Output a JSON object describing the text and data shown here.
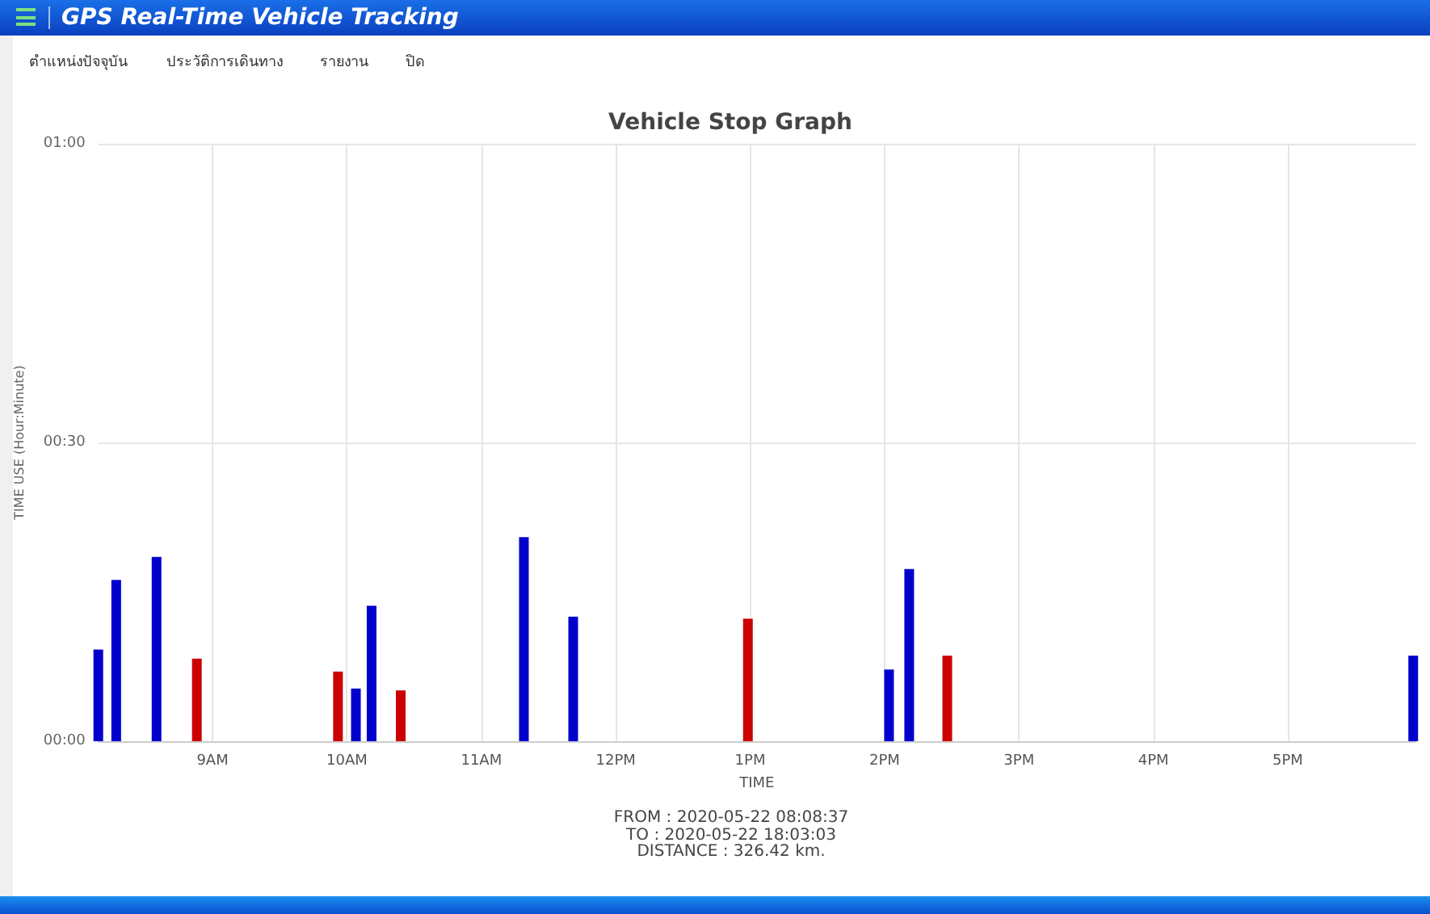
{
  "chart_data": {
    "type": "bar",
    "title": "Vehicle Stop Graph",
    "xlabel": "TIME",
    "ylabel": "TIME USE (Hour:Minute)",
    "annotations": [
      "GPS Real-Time Vehicle Tracking",
      "ตำแหน่งปัจจุบัน",
      "ประวัติการเดินทาง",
      "รายงาน",
      "ปิด",
      "FROM : 2020-05-22 08:08:37",
      "TO : 2020-05-22 18:03:03",
      "DISTANCE : 326.42 km."
    ],
    "x": [
      "2020-05-22T08:09",
      "2020-05-22T08:17",
      "2020-05-22T08:35",
      "2020-05-22T08:53",
      "2020-05-22T09:56",
      "2020-05-22T10:04",
      "2020-05-22T10:11",
      "2020-05-22T10:24",
      "2020-05-22T11:19",
      "2020-05-22T11:41",
      "2020-05-22T12:59",
      "2020-05-22T14:02",
      "2020-05-22T14:11",
      "2020-05-22T14:28",
      "2020-05-22T17:56"
    ],
    "values": [
      9.2,
      16.2,
      18.5,
      8.3,
      7.0,
      5.3,
      13.6,
      5.1,
      20.5,
      12.5,
      12.3,
      7.2,
      17.3,
      8.6,
      8.6
    ],
    "colors": [
      "#0000cc",
      "#0000cc",
      "#0000cc",
      "#cc0000",
      "#cc0000",
      "#0000cc",
      "#0000cc",
      "#cc0000",
      "#0000cc",
      "#0000cc",
      "#cc0000",
      "#0000cc",
      "#0000cc",
      "#cc0000",
      "#0000cc"
    ],
    "xlim": [
      "2020-05-22T08:09",
      "2020-05-22T17:57"
    ],
    "xticks": [
      {
        "value": "2020-05-22T09:00",
        "label": "9AM"
      },
      {
        "value": "2020-05-22T10:00",
        "label": "10AM"
      },
      {
        "value": "2020-05-22T11:00",
        "label": "11AM"
      },
      {
        "value": "2020-05-22T12:00",
        "label": "12PM"
      },
      {
        "value": "2020-05-22T13:00",
        "label": "1PM"
      },
      {
        "value": "2020-05-22T14:00",
        "label": "2PM"
      },
      {
        "value": "2020-05-22T15:00",
        "label": "3PM"
      },
      {
        "value": "2020-05-22T16:00",
        "label": "4PM"
      },
      {
        "value": "2020-05-22T17:00",
        "label": "5PM"
      }
    ],
    "ylim": [
      0,
      60
    ],
    "yticks": [
      {
        "value": 0,
        "label": "00:00"
      },
      {
        "value": 30,
        "label": "00:30"
      },
      {
        "value": 60,
        "label": "01:00"
      }
    ],
    "grid": true
  }
}
